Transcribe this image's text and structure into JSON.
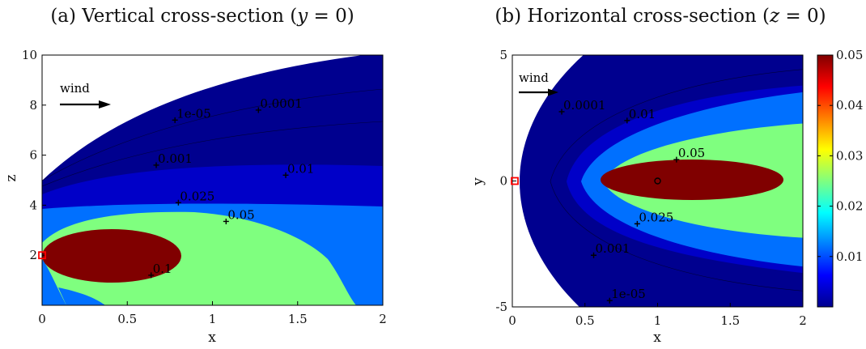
{
  "panels": {
    "a": {
      "title_prefix": "(a) Vertical cross-section (",
      "title_var": "y",
      "title_suffix": " = 0)",
      "xlabel": "x",
      "ylabel": "z",
      "wind_label": "wind"
    },
    "b": {
      "title_prefix": "(b) Horizontal cross-section (",
      "title_var": "z",
      "title_suffix": " = 0)",
      "xlabel": "x",
      "ylabel": "y",
      "wind_label": "wind"
    }
  },
  "colors": {
    "band_low": "#00008f",
    "band_2": "#0000c8",
    "band_3": "#0070ff",
    "band_4": "#7fff7f",
    "band_high": "#800000",
    "source_marker": "#ff0000"
  },
  "chart_data": [
    {
      "type": "contour",
      "panel": "a",
      "title": "(a) Vertical cross-section (y = 0)",
      "xlabel": "x",
      "ylabel": "z",
      "xlim": [
        0,
        2
      ],
      "ylim": [
        0,
        10
      ],
      "xticks": [
        "0",
        "0.5",
        "1",
        "1.5",
        "2"
      ],
      "yticks": [
        "2",
        "4",
        "6",
        "8",
        "10"
      ],
      "contour_levels": [
        1e-05,
        0.0001,
        0.001,
        0.01,
        0.025,
        0.05,
        0.1
      ],
      "contour_labels": [
        {
          "text": "1e-05",
          "x": 0.78,
          "y": 7.4
        },
        {
          "text": "0.0001",
          "x": 1.27,
          "y": 7.8
        },
        {
          "text": "0.001",
          "x": 0.67,
          "y": 5.6
        },
        {
          "text": "0.01",
          "x": 1.43,
          "y": 5.2
        },
        {
          "text": "0.025",
          "x": 0.8,
          "y": 4.1
        },
        {
          "text": "0.05",
          "x": 1.08,
          "y": 3.35
        },
        {
          "text": "0.1",
          "x": 0.64,
          "y": 1.2
        }
      ],
      "source": {
        "x": 0,
        "y": 2
      },
      "wind_direction": "+x",
      "grid": false,
      "colorbar": false
    },
    {
      "type": "contour",
      "panel": "b",
      "title": "(b) Horizontal cross-section (z = 0)",
      "xlabel": "x",
      "ylabel": "y",
      "xlim": [
        0,
        2
      ],
      "ylim": [
        -5,
        5
      ],
      "xticks": [
        "0",
        "0.5",
        "1",
        "1.5",
        "2"
      ],
      "yticks": [
        "-5",
        "0",
        "5"
      ],
      "contour_levels": [
        1e-05,
        0.0001,
        0.001,
        0.01,
        0.025,
        0.05
      ],
      "contour_labels": [
        {
          "text": "0.0001",
          "x": 0.34,
          "y": 2.75
        },
        {
          "text": "0.01",
          "x": 0.79,
          "y": 2.4
        },
        {
          "text": "0.05",
          "x": 1.13,
          "y": 0.85
        },
        {
          "text": "0.025",
          "x": 0.86,
          "y": -1.7
        },
        {
          "text": "0.001",
          "x": 0.56,
          "y": -2.95
        },
        {
          "text": "1e-05",
          "x": 0.67,
          "y": -4.75
        }
      ],
      "source": {
        "x": 0,
        "y": 0
      },
      "maximum_marker": {
        "x": 1.0,
        "y": 0
      },
      "wind_direction": "+x",
      "grid": false,
      "colorbar": {
        "min": 0,
        "max": 0.05,
        "ticks": [
          "0.01",
          "0.02",
          "0.03",
          "0.04",
          "0.05"
        ],
        "tick_values": [
          0.01,
          0.02,
          0.03,
          0.04,
          0.05
        ],
        "colormap": "jet",
        "placement": "right"
      }
    }
  ]
}
